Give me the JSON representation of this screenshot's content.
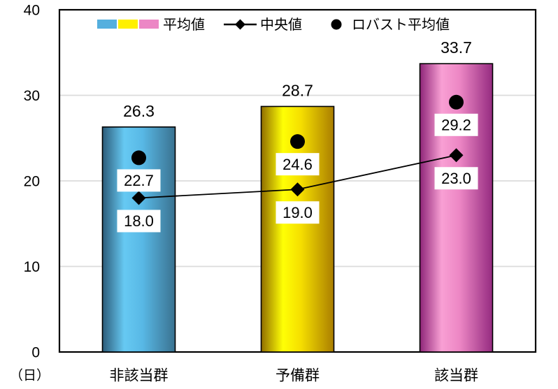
{
  "chart_data": {
    "type": "bar",
    "title": "",
    "categories": [
      "非該当群",
      "予備群",
      "該当群"
    ],
    "unit_label": "（日）",
    "ylim": [
      0,
      40
    ],
    "yticks": [
      0,
      10,
      20,
      30,
      40
    ],
    "grid": true,
    "grid_color": "#DBDBDB",
    "axis_color": "#000000",
    "label_box_bg": "#FFFFFF",
    "legend_position": "top-center",
    "series": [
      {
        "name": "平均値",
        "type": "bar",
        "values": [
          26.3,
          28.7,
          33.7
        ],
        "labels": [
          "26.3",
          "28.7",
          "33.7"
        ],
        "legend_swatch_colors": [
          "#55AFDE",
          "#FFF000",
          "#EC87C5"
        ],
        "bar_gradients": [
          {
            "stops": [
              {
                "o": 0,
                "c": "#2C5B78"
              },
              {
                "o": 0.3,
                "c": "#66C9F3"
              },
              {
                "o": 0.55,
                "c": "#58B8E5"
              },
              {
                "o": 1,
                "c": "#3A7290"
              }
            ]
          },
          {
            "stops": [
              {
                "o": 0,
                "c": "#8F6C00"
              },
              {
                "o": 0.3,
                "c": "#FFFF05"
              },
              {
                "o": 0.55,
                "c": "#F5DE00"
              },
              {
                "o": 1,
                "c": "#AA7E00"
              }
            ]
          },
          {
            "stops": [
              {
                "o": 0,
                "c": "#8E2578"
              },
              {
                "o": 0.3,
                "c": "#F9A0D4"
              },
              {
                "o": 0.55,
                "c": "#EC86C4"
              },
              {
                "o": 1,
                "c": "#952B80"
              }
            ]
          }
        ]
      },
      {
        "name": "中央値",
        "type": "line",
        "marker": "diamond",
        "color": "#000000",
        "values": [
          18.0,
          19.0,
          23.0
        ],
        "labels": [
          "18.0",
          "19.0",
          "23.0"
        ]
      },
      {
        "name": "ロバスト平均値",
        "type": "scatter",
        "marker": "circle",
        "color": "#000000",
        "values": [
          22.7,
          24.6,
          29.2
        ],
        "labels": [
          "22.7",
          "24.6",
          "29.2"
        ]
      }
    ]
  }
}
